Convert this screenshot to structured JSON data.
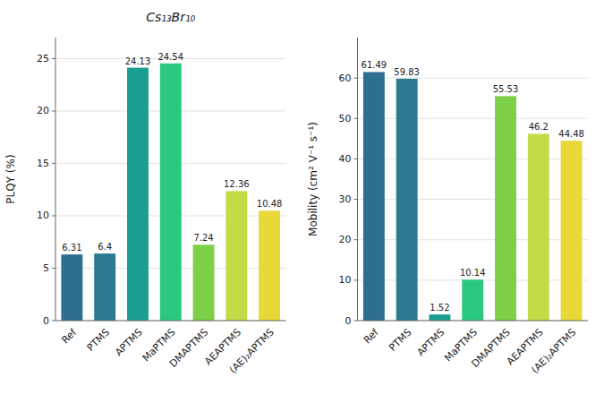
{
  "chart_data": [
    {
      "type": "bar",
      "title": "Cs₁₃Br₁₀",
      "ylabel": "PLQY (%)",
      "categories": [
        "Ref",
        "PTMS",
        "APTMS",
        "MaPTMS",
        "DMAPTMS",
        "AEAPTMS",
        "(AE)₂APTMS"
      ],
      "values": [
        6.31,
        6.4,
        24.13,
        24.54,
        7.24,
        12.36,
        10.48
      ],
      "colors": [
        "#2e6e8e",
        "#2d7a90",
        "#1b9e92",
        "#2dc880",
        "#7ecf48",
        "#c2dc48",
        "#e8d838"
      ],
      "ylim": [
        0,
        27
      ],
      "yticks": [
        0,
        5,
        10,
        15,
        20,
        25
      ],
      "grid": true,
      "data_labels": true
    },
    {
      "type": "bar",
      "ylabel": "Mobility (cm² V⁻¹ s⁻¹)",
      "categories": [
        "Ref",
        "PTMS",
        "APTMS",
        "MaPTMS",
        "DMAPTMS",
        "AEAPTMS",
        "(AE)₂APTMS"
      ],
      "values": [
        61.49,
        59.83,
        1.52,
        10.14,
        55.53,
        46.2,
        44.48
      ],
      "colors": [
        "#2e6e8e",
        "#2d7a90",
        "#1b9e92",
        "#2dc880",
        "#7ecf48",
        "#c2dc48",
        "#e8d838"
      ],
      "ylim": [
        0,
        70
      ],
      "yticks": [
        0,
        10,
        20,
        30,
        40,
        50,
        60
      ],
      "grid": true,
      "data_labels": true
    }
  ]
}
